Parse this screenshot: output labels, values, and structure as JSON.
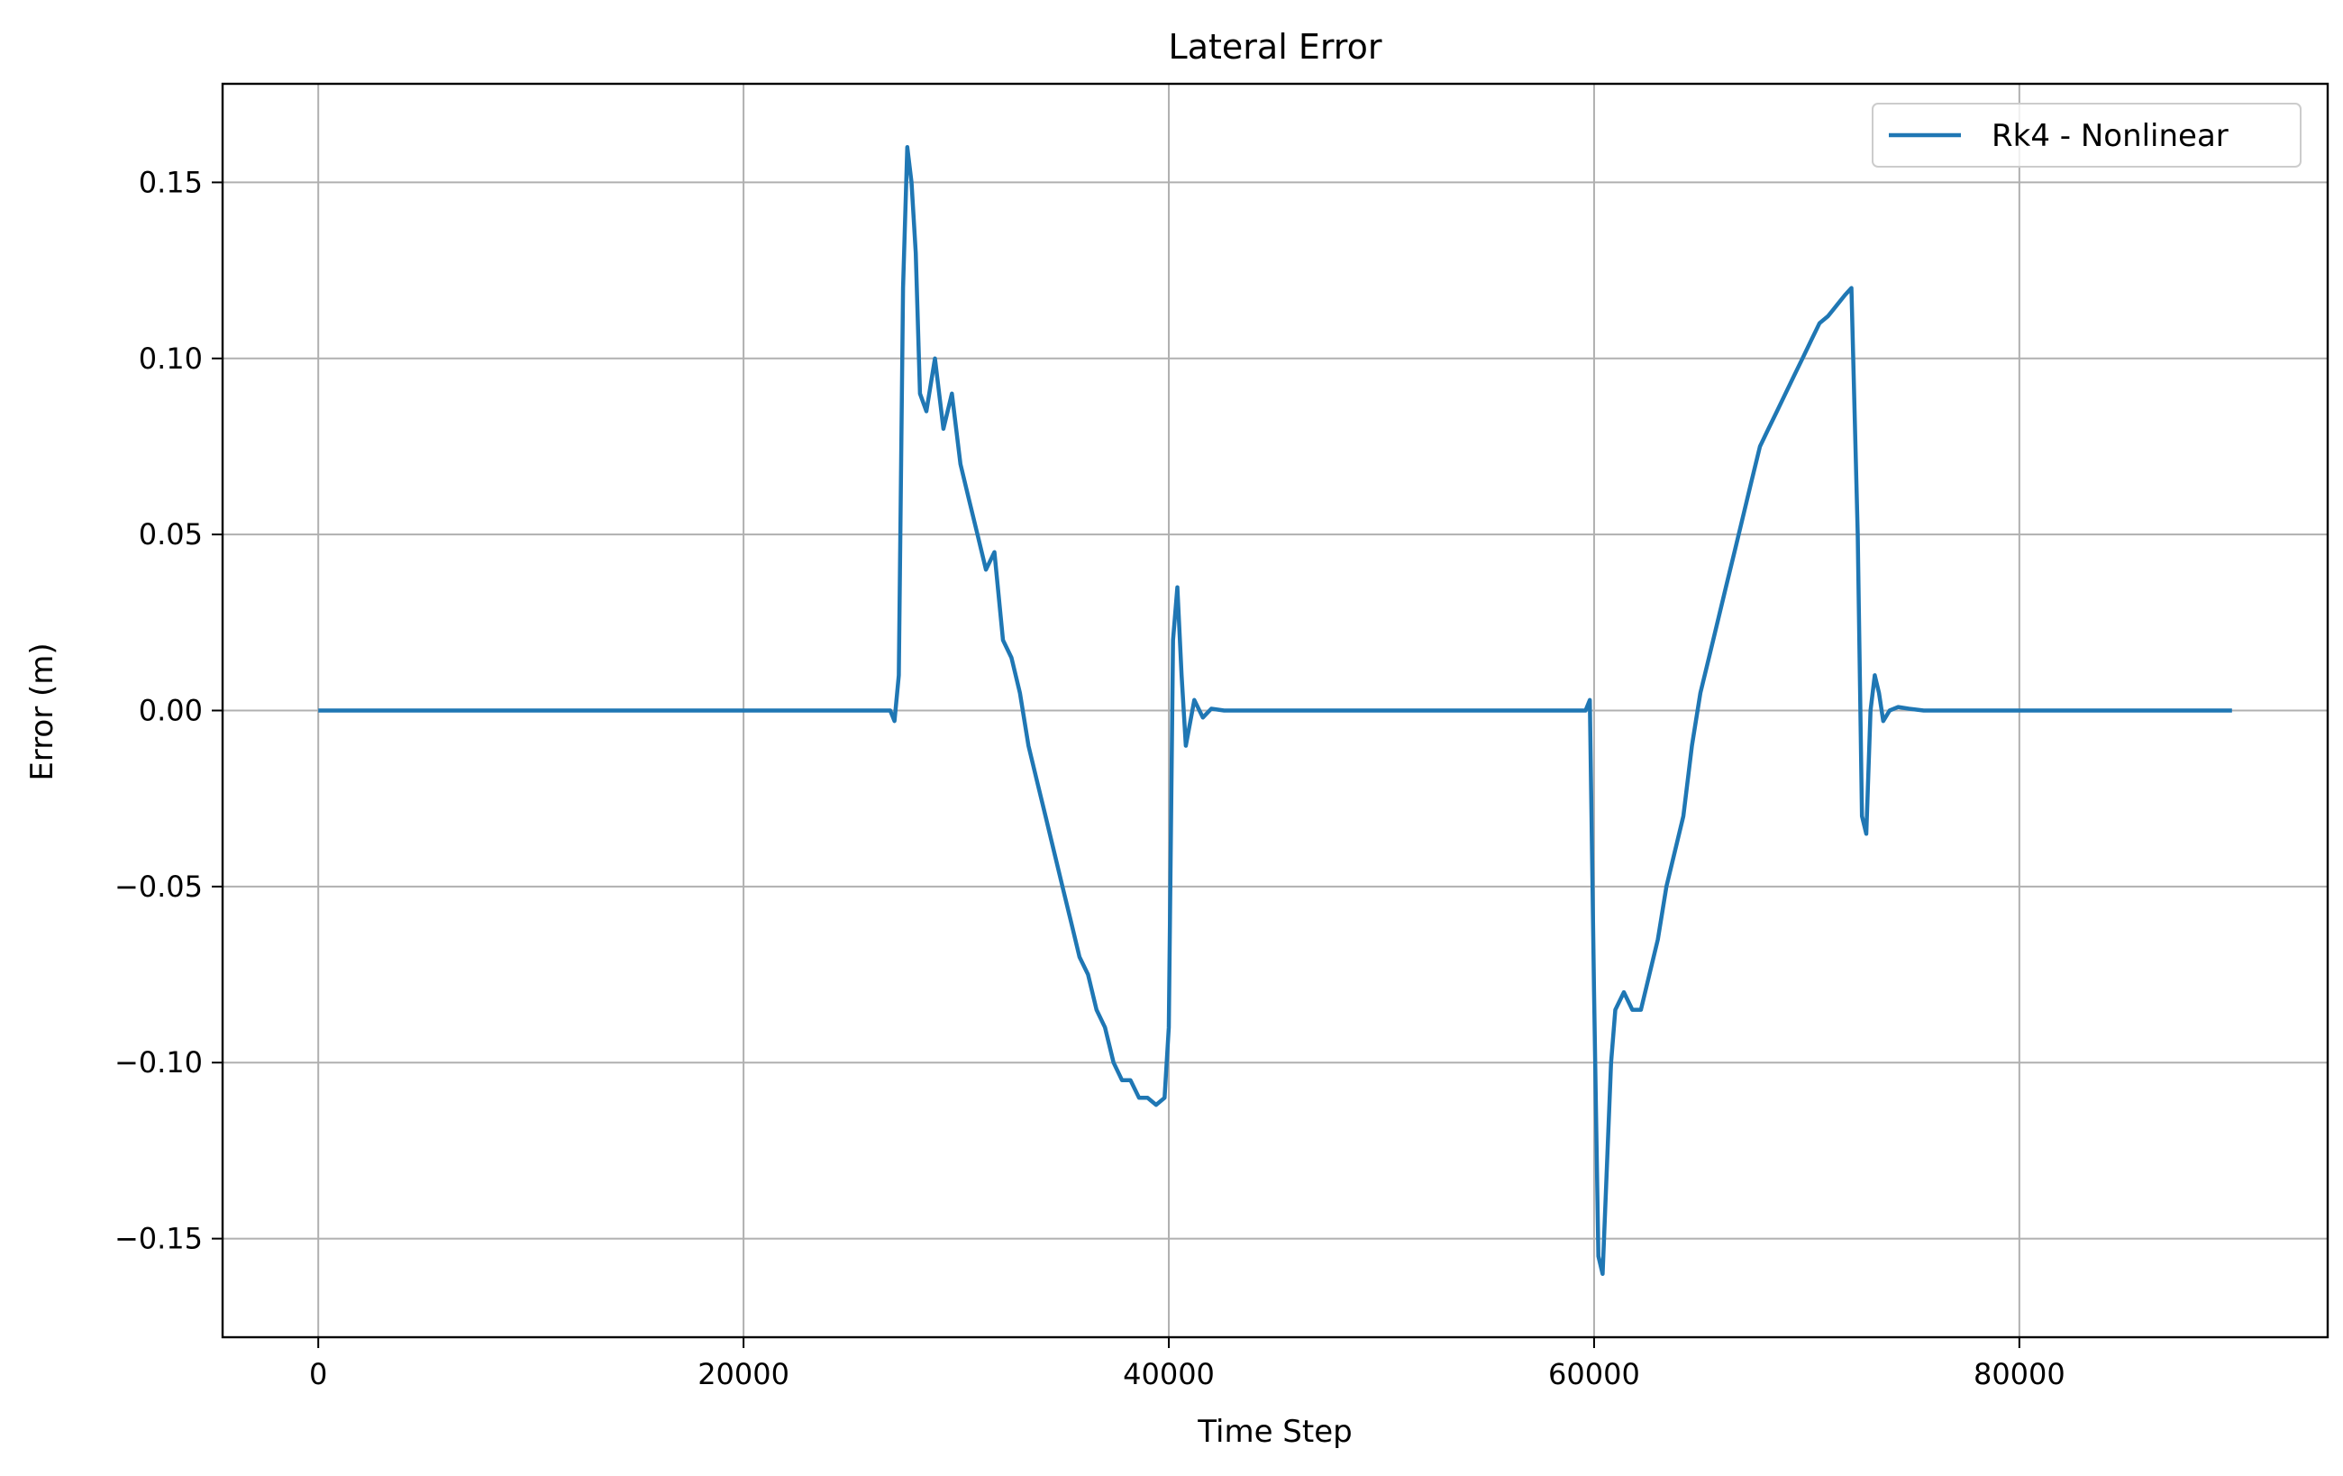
{
  "chart_data": {
    "type": "line",
    "title": "Lateral Error",
    "xlabel": "Time Step",
    "ylabel": "Error (m)",
    "xlim": [
      -4500,
      94500
    ],
    "ylim": [
      -0.178,
      0.178
    ],
    "grid": true,
    "legend_position": "top-right",
    "xticks": [
      0,
      20000,
      40000,
      60000,
      80000
    ],
    "xtick_labels": [
      "0",
      "20000",
      "40000",
      "60000",
      "80000"
    ],
    "yticks": [
      0.15,
      0.1,
      0.05,
      0.0,
      -0.05,
      -0.1,
      -0.15
    ],
    "ytick_labels": [
      "0.15",
      "0.10",
      "0.05",
      "0.00",
      "−0.05",
      "−0.10",
      "−0.15"
    ],
    "series": [
      {
        "name": "Rk4 - Nonlinear",
        "color": "#1f77b4",
        "x": [
          0,
          26900,
          27100,
          27300,
          27500,
          27700,
          27900,
          28100,
          28300,
          28600,
          29000,
          29400,
          29800,
          30200,
          30600,
          31000,
          31400,
          31800,
          32200,
          32600,
          33000,
          33400,
          33800,
          34200,
          34600,
          35000,
          35400,
          35800,
          36200,
          36600,
          37000,
          37400,
          37800,
          38200,
          38600,
          39000,
          39400,
          39800,
          40000,
          40200,
          40400,
          40600,
          40800,
          41200,
          41600,
          42000,
          42600,
          43500,
          59600,
          59800,
          60000,
          60200,
          60400,
          60600,
          60800,
          61000,
          61400,
          61800,
          62200,
          62600,
          63000,
          63400,
          63800,
          64200,
          64600,
          65000,
          65400,
          65800,
          66200,
          66600,
          67000,
          67400,
          67800,
          68200,
          68600,
          69000,
          69400,
          69800,
          70200,
          70600,
          71000,
          71400,
          71800,
          72100,
          72400,
          72600,
          72800,
          73000,
          73200,
          73400,
          73600,
          73900,
          74300,
          74800,
          75500,
          90000
        ],
        "y": [
          0,
          0,
          -0.003,
          0.01,
          0.12,
          0.16,
          0.15,
          0.13,
          0.09,
          0.085,
          0.1,
          0.08,
          0.09,
          0.07,
          0.06,
          0.05,
          0.04,
          0.045,
          0.02,
          0.015,
          0.005,
          -0.01,
          -0.02,
          -0.03,
          -0.04,
          -0.05,
          -0.06,
          -0.07,
          -0.075,
          -0.085,
          -0.09,
          -0.1,
          -0.105,
          -0.105,
          -0.11,
          -0.11,
          -0.112,
          -0.11,
          -0.09,
          0.02,
          0.035,
          0.01,
          -0.01,
          0.003,
          -0.002,
          0.0005,
          0,
          0,
          0,
          0.003,
          -0.08,
          -0.155,
          -0.16,
          -0.13,
          -0.1,
          -0.085,
          -0.08,
          -0.085,
          -0.085,
          -0.075,
          -0.065,
          -0.05,
          -0.04,
          -0.03,
          -0.01,
          0.005,
          0.015,
          0.025,
          0.035,
          0.045,
          0.055,
          0.065,
          0.075,
          0.08,
          0.085,
          0.09,
          0.095,
          0.1,
          0.105,
          0.11,
          0.112,
          0.115,
          0.118,
          0.12,
          0.05,
          -0.03,
          -0.035,
          0.0,
          0.01,
          0.005,
          -0.003,
          0.0,
          0.001,
          0.0005,
          0,
          0
        ]
      }
    ]
  }
}
